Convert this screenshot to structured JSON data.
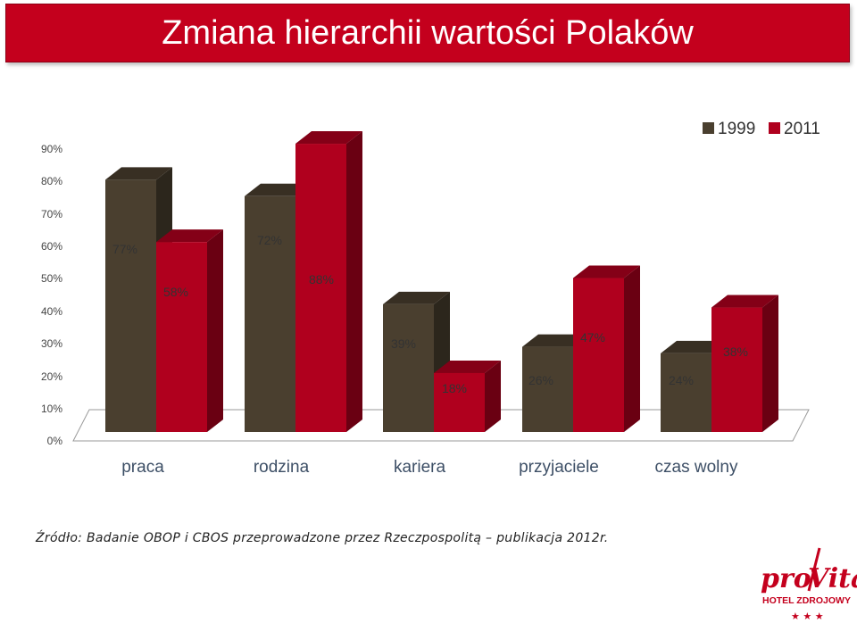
{
  "page": {
    "title": "Zmiana hierarchii wartości Polaków",
    "source": "Źródło: Badanie OBOP i CBOS przeprowadzone przez Rzeczpospolitą – publikacja 2012r.",
    "logo": {
      "brand_left": "pro",
      "brand_right": "Vita",
      "subtitle": "HOTEL ZDROJOWY",
      "stars": "★ ★ ★"
    }
  },
  "colors": {
    "series_1999": "#4a3f2f",
    "series_2011": "#b0001e",
    "title_bg": "#c4001d"
  },
  "chart_data": {
    "type": "bar",
    "title": "Zmiana hierarchii wartości Polaków",
    "categories": [
      "praca",
      "rodzina",
      "kariera",
      "przyjaciele",
      "czas wolny"
    ],
    "series": [
      {
        "name": "1999",
        "values": [
          77,
          72,
          39,
          26,
          24
        ],
        "labels": [
          "77%",
          "72%",
          "39%",
          "26%",
          "24%"
        ]
      },
      {
        "name": "2011",
        "values": [
          58,
          88,
          18,
          47,
          38
        ],
        "labels": [
          "58%",
          "88%",
          "18%",
          "47%",
          "38%"
        ]
      }
    ],
    "heights": [
      [
        77,
        72,
        39,
        26,
        24
      ],
      [
        58,
        88,
        18,
        47,
        38
      ]
    ],
    "y_ticks": [
      "0%",
      "10%",
      "20%",
      "30%",
      "40%",
      "50%",
      "60%",
      "70%",
      "80%",
      "90%"
    ],
    "legend": [
      "1999",
      "2011"
    ],
    "legend_position": "top-right",
    "note": "Bars drawn as 3D columns; rendered heights follow the original figure"
  }
}
